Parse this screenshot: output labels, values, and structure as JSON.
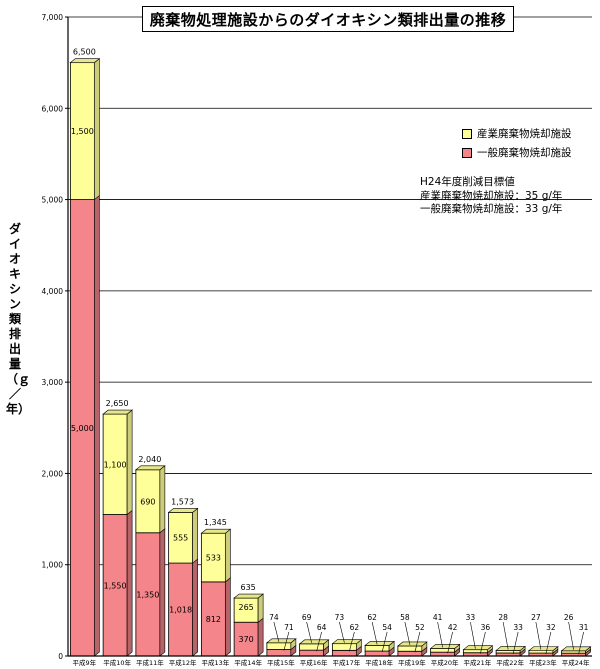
{
  "chart_data": {
    "type": "bar",
    "stacked": true,
    "title": "廃棄物処理施設からのダイオキシン類排出量の推移",
    "ylabel": "ダイオキシン類排出量（ｇ／年）",
    "ylim": [
      0,
      7000
    ],
    "yticks": [
      "0",
      "1,000",
      "2,000",
      "3,000",
      "4,000",
      "5,000",
      "6,000",
      "7,000"
    ],
    "grid": true,
    "legend_position": "top-right",
    "categories": [
      "平成9年",
      "平成10年",
      "平成11年",
      "平成12年",
      "平成13年",
      "平成14年",
      "平成15年",
      "平成16年",
      "平成17年",
      "平成18年",
      "平成19年",
      "平成20年",
      "平成21年",
      "平成22年",
      "平成23年",
      "平成24年"
    ],
    "series": [
      {
        "name": "一般廃棄物焼却施設",
        "color": "#f4858a",
        "values": [
          5000,
          1550,
          1350,
          1018,
          812,
          370,
          71,
          64,
          62,
          54,
          52,
          42,
          36,
          33,
          32,
          31
        ]
      },
      {
        "name": "産業廃棄物焼却施設",
        "color": "#ffff99",
        "values": [
          1500,
          1100,
          690,
          555,
          533,
          265,
          74,
          69,
          73,
          62,
          58,
          41,
          33,
          28,
          27,
          26
        ]
      }
    ],
    "segment_labels": {
      "一般廃棄物焼却施設": [
        "5,000",
        "1,550",
        "1,350",
        "1,018",
        "812",
        "370",
        "71",
        "64",
        "62",
        "54",
        "52",
        "42",
        "36",
        "33",
        "32",
        "31"
      ],
      "産業廃棄物焼却施設": [
        "1,500",
        "1,100",
        "690",
        "555",
        "533",
        "265",
        "74",
        "69",
        "73",
        "62",
        "58",
        "41",
        "33",
        "28",
        "27",
        "26"
      ]
    },
    "total_labels": [
      "6,500",
      "2,650",
      "2,040",
      "1,573",
      "1,345",
      "635"
    ],
    "annotation": {
      "heading": "H24年度削減目標値",
      "lines": [
        "産業廃棄物焼却施設：35 g/年",
        "一般廃棄物焼却施設：33 g/年"
      ]
    }
  }
}
